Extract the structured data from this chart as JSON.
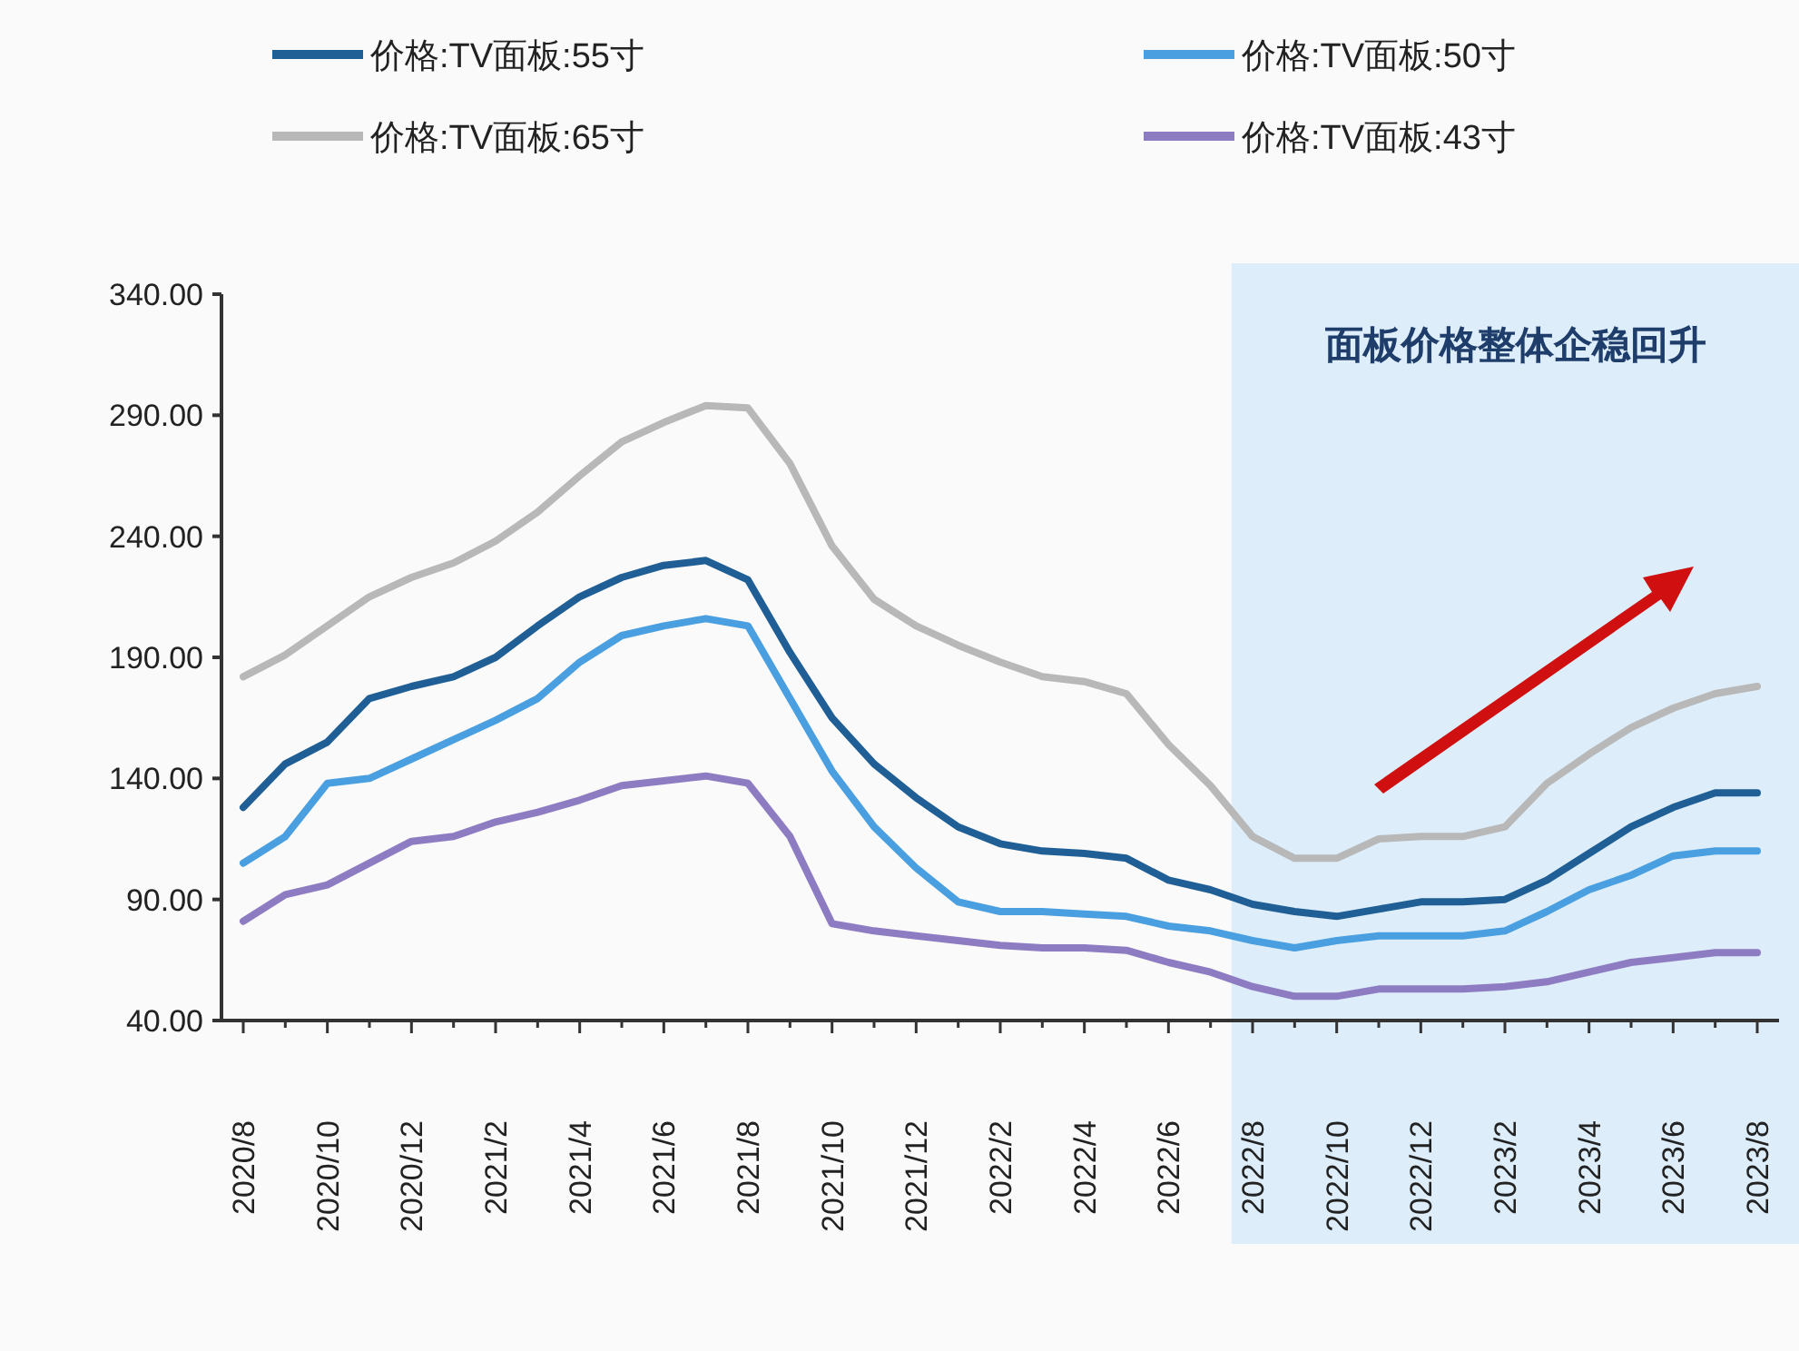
{
  "chart_data": {
    "type": "line",
    "categories": [
      "2020/8",
      null,
      "2020/10",
      null,
      "2020/12",
      null,
      "2021/2",
      null,
      "2021/4",
      null,
      "2021/6",
      null,
      "2021/8",
      null,
      "2021/10",
      null,
      "2021/12",
      null,
      "2022/2",
      null,
      "2022/4",
      null,
      "2022/6",
      null,
      "2022/8",
      null,
      "2022/10",
      null,
      "2022/12",
      null,
      "2023/2",
      null,
      "2023/4",
      null,
      "2023/6",
      null,
      "2023/8"
    ],
    "series": [
      {
        "name": "价格:TV面板:55寸",
        "color": "#1f5f96",
        "values": [
          128,
          146,
          155,
          173,
          178,
          182,
          190,
          203,
          215,
          223,
          228,
          230,
          222,
          192,
          165,
          146,
          132,
          120,
          113,
          110,
          109,
          107,
          98,
          94,
          88,
          85,
          83,
          86,
          89,
          89,
          90,
          98,
          109,
          120,
          128,
          134,
          134
        ]
      },
      {
        "name": "价格:TV面板:50寸",
        "color": "#4a9fe0",
        "values": [
          105,
          116,
          138,
          140,
          148,
          156,
          164,
          173,
          188,
          199,
          203,
          206,
          203,
          173,
          143,
          120,
          103,
          89,
          85,
          85,
          84,
          83,
          79,
          77,
          73,
          70,
          73,
          75,
          75,
          75,
          77,
          85,
          94,
          100,
          108,
          110,
          110
        ]
      },
      {
        "name": "价格:TV面板:65寸",
        "color": "#b8b8b8",
        "values": [
          182,
          191,
          203,
          215,
          223,
          229,
          238,
          250,
          265,
          279,
          287,
          294,
          293,
          270,
          236,
          214,
          203,
          195,
          188,
          182,
          180,
          175,
          154,
          137,
          116,
          107,
          107,
          115,
          116,
          116,
          120,
          138,
          150,
          161,
          169,
          175,
          178
        ]
      },
      {
        "name": "价格:TV面板:43寸",
        "color": "#8e7cc3",
        "values": [
          81,
          92,
          96,
          105,
          114,
          116,
          122,
          126,
          131,
          137,
          139,
          141,
          138,
          116,
          80,
          77,
          75,
          73,
          71,
          70,
          70,
          69,
          64,
          60,
          54,
          50,
          50,
          53,
          53,
          53,
          54,
          56,
          60,
          64,
          66,
          68,
          68
        ]
      }
    ],
    "ylim": [
      40,
      340
    ],
    "yticks": [
      {
        "value": 40,
        "label": "40.00"
      },
      {
        "value": 90,
        "label": "90.00"
      },
      {
        "value": 140,
        "label": "140.00"
      },
      {
        "value": 190,
        "label": "190.00"
      },
      {
        "value": 240,
        "label": "240.00"
      },
      {
        "value": 290,
        "label": "290.00"
      },
      {
        "value": 340,
        "label": "340.00"
      }
    ],
    "bands": [
      {
        "axis": "x",
        "from": "2022/8",
        "to": "2023/8",
        "color": "#ddeefa"
      }
    ],
    "annotations": [
      "面板价格整体企稳回升"
    ],
    "legend": "top"
  }
}
